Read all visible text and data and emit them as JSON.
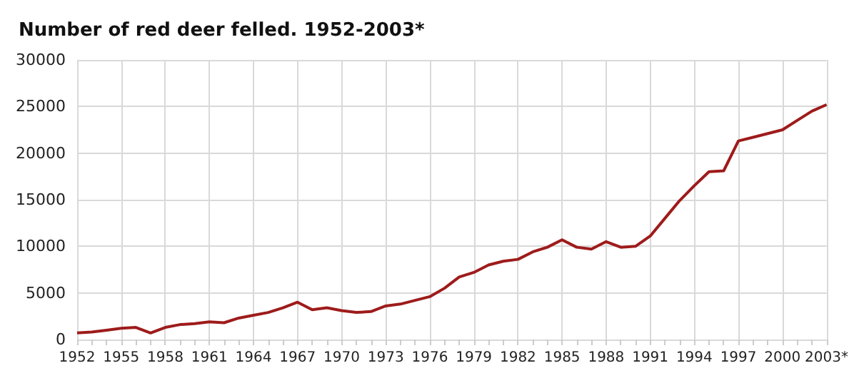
{
  "chart_data": {
    "type": "line",
    "title": "Number of red deer felled. 1952-2003*",
    "categories": [
      "1952",
      null,
      null,
      "1955",
      null,
      null,
      "1958",
      null,
      null,
      "1961",
      null,
      null,
      "1964",
      null,
      null,
      "1967",
      null,
      null,
      "1970",
      null,
      null,
      "1973",
      null,
      null,
      "1976",
      null,
      null,
      "1979",
      null,
      null,
      "1982",
      null,
      null,
      "1985",
      null,
      null,
      "1988",
      null,
      null,
      "1991",
      null,
      null,
      "1994",
      null,
      null,
      "1997",
      null,
      null,
      "2000",
      null,
      null,
      "2003*"
    ],
    "series": [
      {
        "color": "#9e1b1b",
        "values": [
          700,
          800,
          1000,
          1200,
          1300,
          700,
          1300,
          1600,
          1700,
          1900,
          1800,
          2300,
          2600,
          2900,
          3400,
          4000,
          3200,
          3400,
          3100,
          2900,
          3000,
          3600,
          3800,
          4200,
          4600,
          5500,
          6700,
          7200,
          8000,
          8400,
          8600,
          9400,
          9900,
          10700,
          9900,
          9700,
          10500,
          9900,
          10000,
          11100,
          13000,
          14900,
          16500,
          18000,
          18100,
          21300,
          21700,
          22100,
          22500,
          23500,
          24500,
          25200
        ]
      }
    ],
    "ylim": [
      0,
      30000
    ],
    "yticks": [
      0,
      5000,
      10000,
      15000,
      20000,
      25000,
      30000
    ],
    "grid": true,
    "marker": "none",
    "line_style": "solid"
  }
}
